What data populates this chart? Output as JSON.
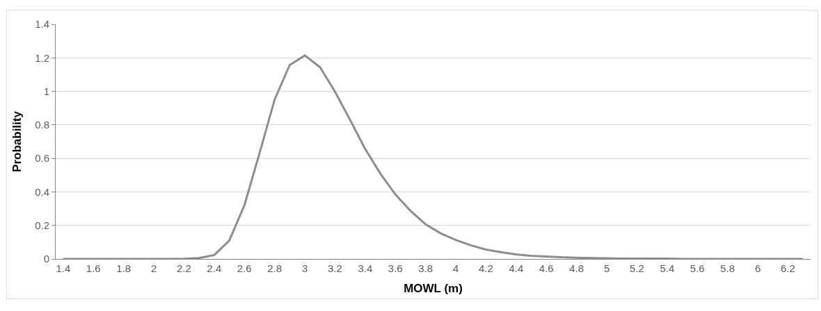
{
  "chart_data": {
    "type": "line",
    "xlabel": "MOWL (m)",
    "ylabel": "Probability",
    "categories": [
      "1.4",
      null,
      "1.6",
      null,
      "1.8",
      null,
      "2",
      null,
      "2.2",
      null,
      "2.4",
      null,
      "2.6",
      null,
      "2.8",
      null,
      "3",
      null,
      "3.2",
      null,
      "3.4",
      null,
      "3.6",
      null,
      "3.8",
      null,
      "4",
      null,
      "4.2",
      null,
      "4.4",
      null,
      "4.6",
      null,
      "4.8",
      null,
      "5",
      null,
      "5.2",
      null,
      "5.4",
      null,
      "5.6",
      null,
      "5.8",
      null,
      "6",
      null,
      "6.2",
      null
    ],
    "series": [
      {
        "color": "#8c8c8c",
        "values": [
          0,
          0,
          0,
          0,
          0,
          0,
          0,
          0,
          0.001,
          0.005,
          0.023,
          0.109,
          0.32,
          0.63,
          0.95,
          1.157,
          1.214,
          1.145,
          0.998,
          0.83,
          0.656,
          0.51,
          0.385,
          0.287,
          0.207,
          0.153,
          0.113,
          0.081,
          0.056,
          0.04,
          0.027,
          0.019,
          0.015,
          0.01,
          0.007,
          0.005,
          0.004,
          0.002,
          0.002,
          0.002,
          0.002,
          0,
          0,
          0,
          0,
          0,
          0,
          0,
          0,
          0
        ]
      }
    ],
    "ylim": [
      0,
      1.4
    ],
    "yticks": [
      0,
      0.2,
      0.4,
      0.6,
      0.8,
      1,
      1.2,
      1.4
    ],
    "grid": "y",
    "marker": "none",
    "line_style": "solid"
  }
}
